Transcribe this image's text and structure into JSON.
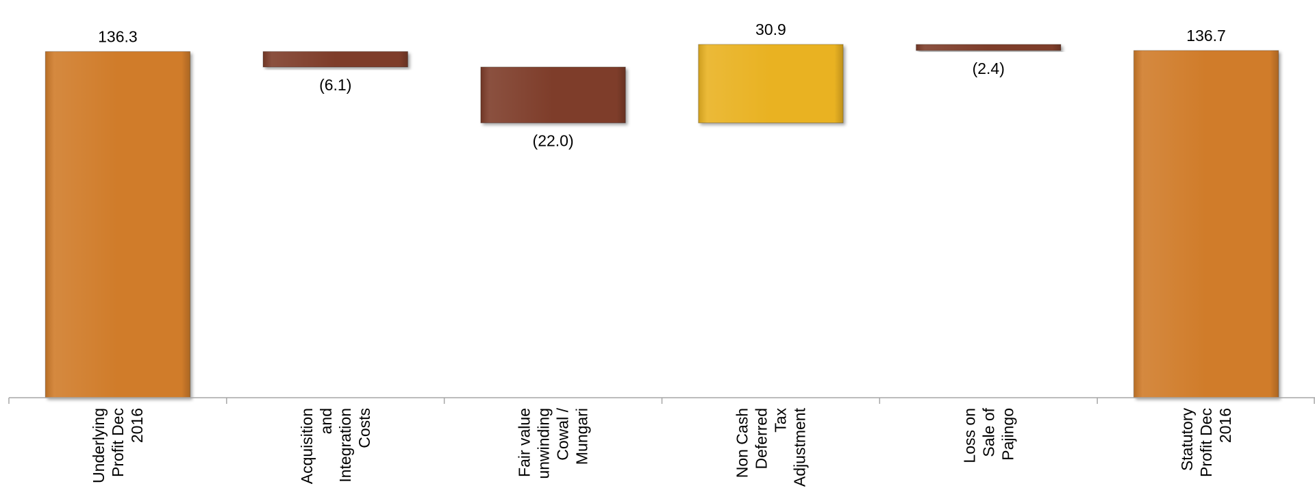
{
  "chart_data": {
    "type": "bar",
    "subtype": "waterfall",
    "title": "",
    "xlabel": "",
    "ylabel": "",
    "ylim": [
      0,
      145
    ],
    "grid": false,
    "legend": "none",
    "categories": [
      [
        "Underlying",
        "Profit Dec",
        "2016"
      ],
      [
        "Acquisition",
        "and",
        "Integration",
        "Costs"
      ],
      [
        "Fair value",
        "unwinding",
        "Cowal /",
        "Mungari"
      ],
      [
        "Non Cash",
        "Deferred",
        "Tax",
        "Adjustment"
      ],
      [
        "Loss on",
        "Sale of",
        "Pajingo"
      ],
      [
        "Statutory",
        "Profit Dec",
        "2016"
      ]
    ],
    "steps": [
      {
        "kind": "total",
        "value": 136.3,
        "label": "136.3",
        "color": "#D07C2C"
      },
      {
        "kind": "delta",
        "value": -6.1,
        "label": "(6.1)",
        "color": "#7E3E2B"
      },
      {
        "kind": "delta",
        "value": -22.0,
        "label": "(22.0)",
        "color": "#7E3E2B"
      },
      {
        "kind": "delta",
        "value": 30.9,
        "label": "30.9",
        "color": "#E9B224"
      },
      {
        "kind": "delta",
        "value": -2.4,
        "label": "(2.4)",
        "color": "#7E3E2B"
      },
      {
        "kind": "total",
        "value": 136.7,
        "label": "136.7",
        "color": "#D07C2C"
      }
    ],
    "axis_color": "#A6A6A6"
  }
}
